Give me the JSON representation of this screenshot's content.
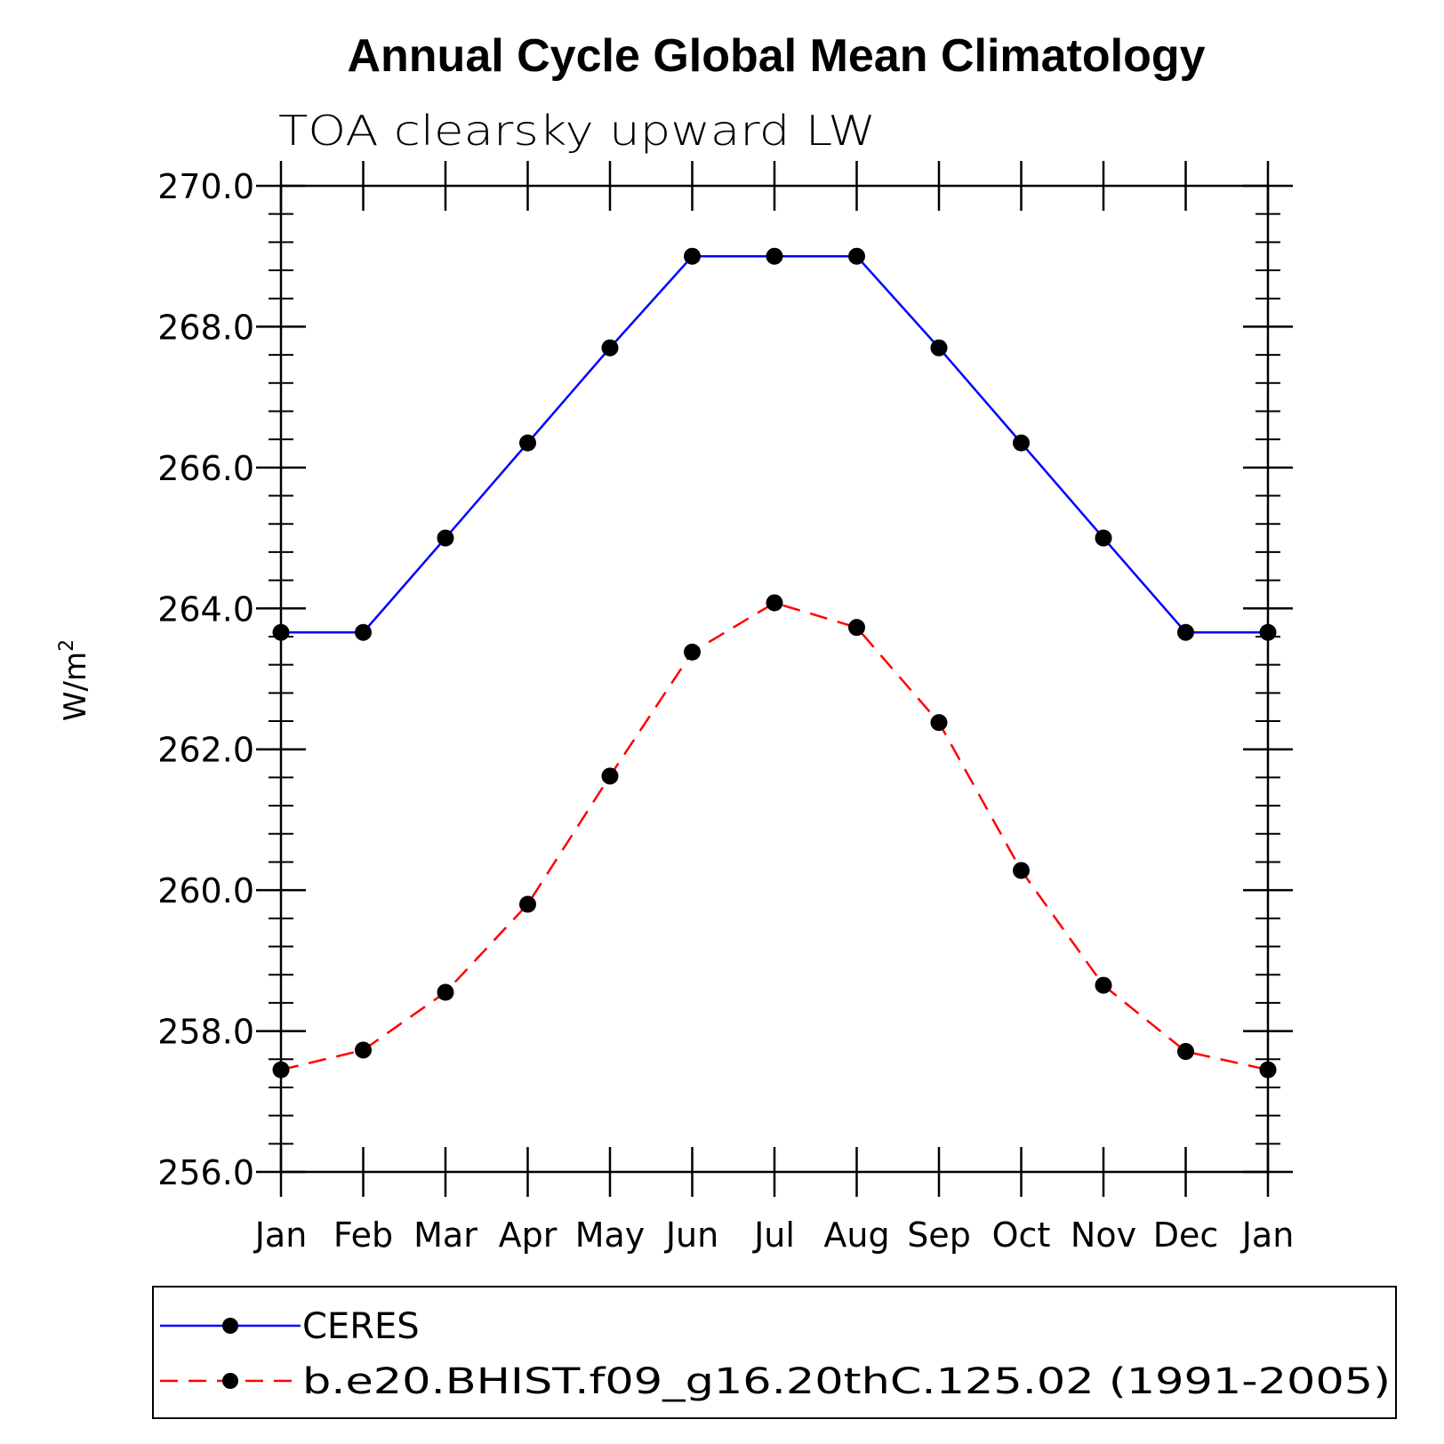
{
  "chart_data": {
    "type": "line",
    "title": "Annual Cycle Global Mean Climatology",
    "subtitle": "TOA clearsky upward LW",
    "xlabel": "",
    "ylabel": "W/m",
    "ylabel_superscript": "2",
    "categories": [
      "Jan",
      "Feb",
      "Mar",
      "Apr",
      "May",
      "Jun",
      "Jul",
      "Aug",
      "Sep",
      "Oct",
      "Nov",
      "Dec",
      "Jan"
    ],
    "ylim": [
      256.0,
      270.0
    ],
    "yticks": [
      "256.0",
      "258.0",
      "260.0",
      "262.0",
      "264.0",
      "266.0",
      "268.0",
      "270.0"
    ],
    "grid": false,
    "legend_position": "bottom",
    "series": [
      {
        "name": "CERES",
        "color": "#0000ff",
        "line_style": "solid",
        "marker": "filled-circle",
        "values": [
          263.66,
          263.66,
          265.0,
          266.35,
          267.7,
          269.0,
          269.0,
          269.0,
          267.7,
          266.35,
          265.0,
          263.66,
          263.66
        ]
      },
      {
        "name": "b.e20.BHIST.f09_g16.20thC.125.02 (1991-2005)",
        "color": "#ff0000",
        "line_style": "dashed",
        "marker": "filled-circle",
        "values": [
          257.45,
          257.73,
          258.55,
          259.8,
          261.62,
          263.38,
          264.08,
          263.73,
          262.38,
          260.28,
          258.65,
          257.71,
          257.45
        ]
      }
    ]
  }
}
